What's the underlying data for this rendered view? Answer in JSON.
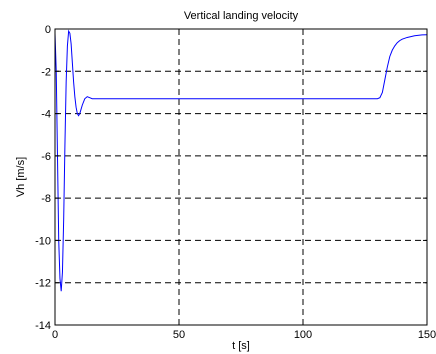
{
  "chart_data": {
    "type": "line",
    "title": "Vertical landing velocity",
    "xlabel": "t [s]",
    "ylabel": "Vh [m/s]",
    "xlim": [
      0,
      150
    ],
    "ylim": [
      -14,
      0
    ],
    "xticks": [
      0,
      50,
      100,
      150
    ],
    "yticks": [
      -14,
      -12,
      -10,
      -8,
      -6,
      -4,
      -2,
      0
    ],
    "xtick_labels": [
      "0",
      "50",
      "100",
      "150"
    ],
    "ytick_labels": [
      "-14",
      "-12",
      "-10",
      "-8",
      "-6",
      "-4",
      "-2",
      "0"
    ],
    "grid": true,
    "grid_style": "dashed",
    "line_color": "#0000ff",
    "series": [
      {
        "x": [
          0,
          0.5,
          1,
          1.5,
          2,
          2.5,
          3,
          3.5,
          4,
          4.5,
          5,
          5.5,
          6,
          6.5,
          7,
          7.5,
          8,
          8.5,
          9,
          9.5,
          10,
          11,
          12,
          13,
          14,
          15,
          16,
          17,
          18,
          20,
          30,
          60,
          100,
          125,
          130,
          131,
          132,
          133,
          134,
          135,
          136,
          137,
          138,
          139,
          140,
          142,
          145,
          148,
          150
        ],
        "y": [
          -0.2,
          -2,
          -6,
          -10,
          -11.8,
          -12.4,
          -11.5,
          -9,
          -5.5,
          -2.5,
          -0.8,
          -0.1,
          -0.2,
          -0.7,
          -1.6,
          -2.5,
          -3.2,
          -3.7,
          -4.0,
          -4.1,
          -4.0,
          -3.6,
          -3.3,
          -3.2,
          -3.25,
          -3.3,
          -3.3,
          -3.3,
          -3.3,
          -3.3,
          -3.3,
          -3.3,
          -3.3,
          -3.3,
          -3.3,
          -3.25,
          -3.0,
          -2.4,
          -1.8,
          -1.3,
          -1.0,
          -0.8,
          -0.65,
          -0.55,
          -0.48,
          -0.4,
          -0.32,
          -0.28,
          -0.27
        ]
      }
    ]
  }
}
